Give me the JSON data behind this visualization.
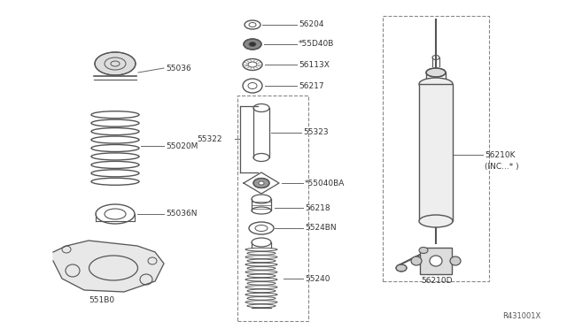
{
  "bg_color": "#ffffff",
  "part_color": "#555555",
  "label_color": "#333333",
  "ref_number": "R431001X",
  "figsize": [
    6.4,
    3.72
  ],
  "dpi": 100,
  "xlim": [
    0,
    640
  ],
  "ylim": [
    0,
    372
  ]
}
